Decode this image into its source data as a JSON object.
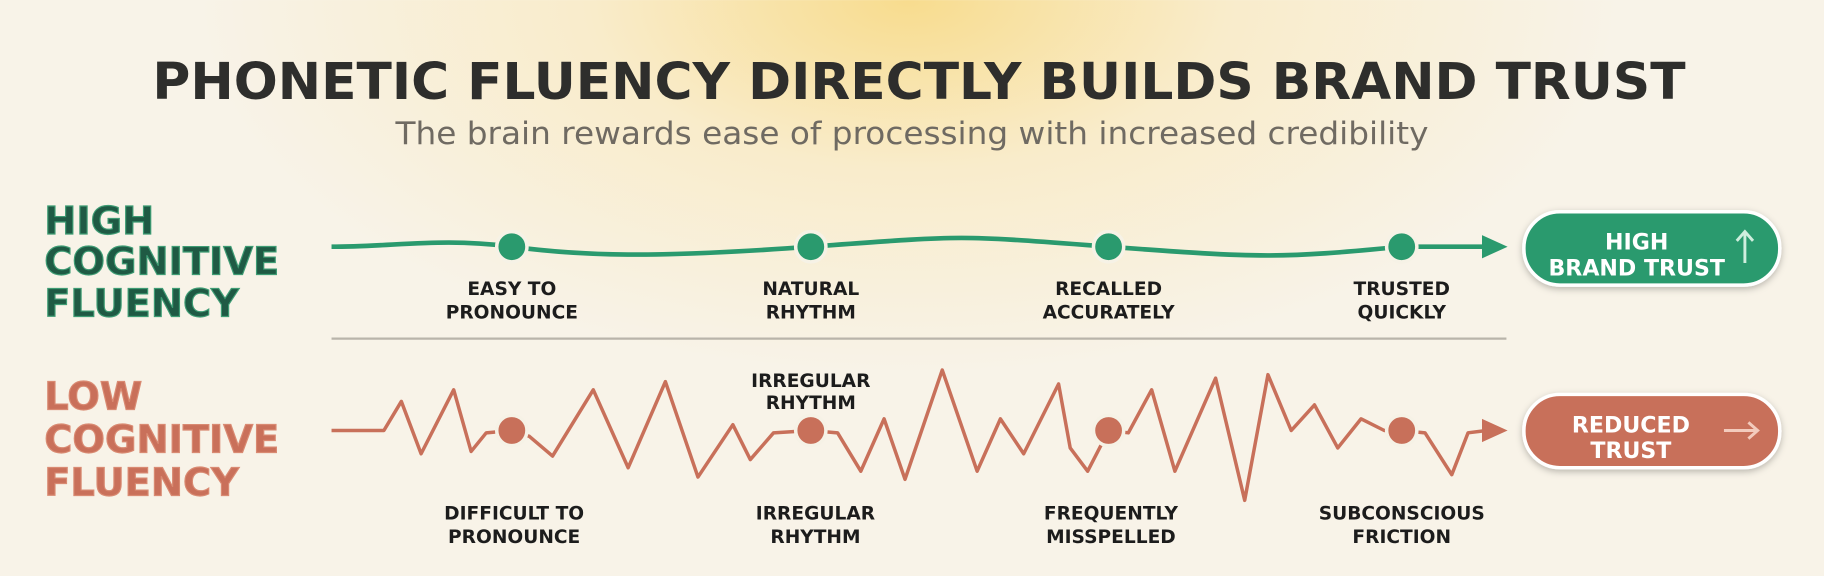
{
  "header": {
    "title": "PHONETIC FLUENCY DIRECTLY BUILDS BRAND TRUST",
    "subtitle": "The brain rewards ease of processing with increased credibility"
  },
  "rows": [
    {
      "label": [
        "HIGH",
        "COGNITIVE",
        "FLUENCY"
      ],
      "steps": [
        [
          "EASY TO",
          "PRONOUNCE"
        ],
        [
          "NATURAL",
          "RHYTHM"
        ],
        [
          "RECALLED",
          "ACCURATELY"
        ],
        [
          "TRUSTED",
          "QUICKLY"
        ]
      ],
      "outcome": [
        "HIGH",
        "BRAND TRUST"
      ]
    },
    {
      "label": [
        "LOW",
        "COGNITIVE",
        "FLUENCY"
      ],
      "annotation": [
        "IRREGULAR",
        "RHYTHM"
      ],
      "steps": [
        [
          "DIFFICULT TO",
          "PRONOUNCE"
        ],
        [
          "IRREGULAR",
          "RHYTHM"
        ],
        [
          "FREQUENTLY",
          "MISSPELLED"
        ],
        [
          "SUBCONSCIOUS",
          "FRICTION"
        ]
      ],
      "outcome": [
        "REDUCED",
        "TRUST"
      ]
    }
  ]
}
